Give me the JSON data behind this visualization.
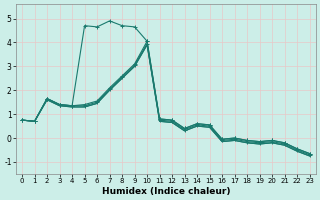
{
  "xlabel": "Humidex (Indice chaleur)",
  "background_color": "#cceee8",
  "line_color": "#1a7a6e",
  "grid_color_v": "#e8c8c8",
  "grid_color_h": "#e8c8c8",
  "xlim": [
    -0.5,
    23.5
  ],
  "ylim": [
    -1.5,
    5.6
  ],
  "yticks": [
    -1,
    0,
    1,
    2,
    3,
    4,
    5
  ],
  "xticks": [
    0,
    1,
    2,
    3,
    4,
    5,
    6,
    7,
    8,
    9,
    10,
    11,
    12,
    13,
    14,
    15,
    16,
    17,
    18,
    19,
    20,
    21,
    22,
    23
  ],
  "series": [
    [
      0.75,
      0.7,
      1.65,
      1.4,
      1.35,
      4.7,
      4.65,
      4.9,
      4.7,
      4.65,
      4.05,
      0.8,
      0.75,
      0.4,
      0.6,
      0.55,
      -0.05,
      0.0,
      -0.1,
      -0.15,
      -0.1,
      -0.2,
      -0.45,
      -0.65
    ],
    [
      0.75,
      0.7,
      1.65,
      1.4,
      1.35,
      1.4,
      1.55,
      2.1,
      2.6,
      3.1,
      4.05,
      0.8,
      0.75,
      0.4,
      0.6,
      0.55,
      -0.05,
      0.0,
      -0.1,
      -0.15,
      -0.1,
      -0.2,
      -0.45,
      -0.65
    ],
    [
      0.75,
      0.7,
      1.65,
      1.4,
      1.35,
      1.35,
      1.5,
      2.05,
      2.55,
      3.05,
      3.95,
      0.75,
      0.7,
      0.35,
      0.55,
      0.5,
      -0.1,
      -0.05,
      -0.15,
      -0.2,
      -0.15,
      -0.25,
      -0.5,
      -0.7
    ],
    [
      0.75,
      0.7,
      1.6,
      1.35,
      1.3,
      1.3,
      1.45,
      2.0,
      2.5,
      3.0,
      3.9,
      0.7,
      0.65,
      0.3,
      0.5,
      0.45,
      -0.15,
      -0.1,
      -0.2,
      -0.25,
      -0.2,
      -0.3,
      -0.55,
      -0.75
    ],
    [
      0.75,
      0.7,
      1.6,
      1.35,
      1.3,
      1.3,
      1.45,
      2.0,
      2.5,
      3.0,
      3.9,
      0.7,
      0.65,
      0.3,
      0.5,
      0.45,
      -0.15,
      -0.1,
      -0.2,
      -0.25,
      -0.2,
      -0.3,
      -0.55,
      -0.75
    ]
  ],
  "markers": [
    true,
    true,
    true,
    false,
    false
  ]
}
